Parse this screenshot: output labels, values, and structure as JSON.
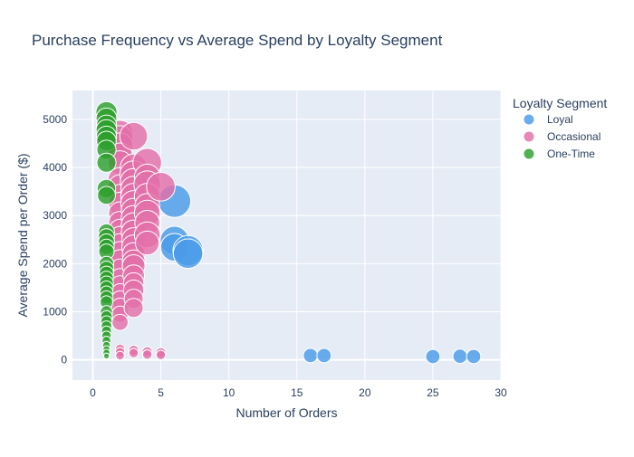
{
  "chart_data": {
    "type": "scatter",
    "title": "Purchase Frequency vs Average Spend by Loyalty Segment",
    "xlabel": "Number of Orders",
    "ylabel": "Average Spend per Order ($)",
    "xlim": [
      -1.5,
      30
    ],
    "ylim": [
      -420,
      5600
    ],
    "x_ticks": [
      0,
      5,
      10,
      15,
      20,
      25,
      30
    ],
    "y_ticks": [
      0,
      1000,
      2000,
      3000,
      4000,
      5000
    ],
    "grid": true,
    "legend": {
      "title": "Loyalty Segment",
      "placement": "top-right"
    },
    "series": [
      {
        "name": "Loyal",
        "color": "#4a9be8",
        "points": [
          {
            "x": 6,
            "y": 3300,
            "s": 1.0
          },
          {
            "x": 6,
            "y": 2480,
            "s": 0.75
          },
          {
            "x": 6,
            "y": 2340,
            "s": 0.7
          },
          {
            "x": 7,
            "y": 2270,
            "s": 0.85
          },
          {
            "x": 7,
            "y": 2210,
            "s": 0.8
          },
          {
            "x": 16,
            "y": 90,
            "s": 0.15
          },
          {
            "x": 17,
            "y": 90,
            "s": 0.15
          },
          {
            "x": 25,
            "y": 70,
            "s": 0.15
          },
          {
            "x": 27,
            "y": 75,
            "s": 0.15
          },
          {
            "x": 28,
            "y": 70,
            "s": 0.15
          }
        ]
      },
      {
        "name": "Occasional",
        "color": "#e36fa8",
        "points": [
          {
            "x": 2,
            "y": 4700,
            "s": 0.65
          },
          {
            "x": 2,
            "y": 4600,
            "s": 0.6
          },
          {
            "x": 2,
            "y": 4450,
            "s": 0.6
          },
          {
            "x": 2,
            "y": 4250,
            "s": 0.55
          },
          {
            "x": 2,
            "y": 4100,
            "s": 0.5
          },
          {
            "x": 2,
            "y": 3750,
            "s": 0.5
          },
          {
            "x": 2,
            "y": 3600,
            "s": 0.5
          },
          {
            "x": 2,
            "y": 3400,
            "s": 0.5
          },
          {
            "x": 2,
            "y": 3250,
            "s": 0.45
          },
          {
            "x": 2,
            "y": 3050,
            "s": 0.45
          },
          {
            "x": 2,
            "y": 2850,
            "s": 0.45
          },
          {
            "x": 2,
            "y": 2700,
            "s": 0.4
          },
          {
            "x": 2,
            "y": 2550,
            "s": 0.4
          },
          {
            "x": 2,
            "y": 2400,
            "s": 0.4
          },
          {
            "x": 2,
            "y": 2250,
            "s": 0.35
          },
          {
            "x": 2,
            "y": 2080,
            "s": 0.35
          },
          {
            "x": 2,
            "y": 1900,
            "s": 0.3
          },
          {
            "x": 2,
            "y": 1700,
            "s": 0.3
          },
          {
            "x": 2,
            "y": 1550,
            "s": 0.3
          },
          {
            "x": 2,
            "y": 1400,
            "s": 0.25
          },
          {
            "x": 2,
            "y": 1250,
            "s": 0.25
          },
          {
            "x": 2,
            "y": 1100,
            "s": 0.25
          },
          {
            "x": 2,
            "y": 950,
            "s": 0.2
          },
          {
            "x": 2,
            "y": 780,
            "s": 0.2
          },
          {
            "x": 2,
            "y": 230,
            "s": 0.05
          },
          {
            "x": 2,
            "y": 160,
            "s": 0.05
          },
          {
            "x": 2,
            "y": 90,
            "s": 0.04
          },
          {
            "x": 3,
            "y": 4650,
            "s": 0.7
          },
          {
            "x": 3,
            "y": 4000,
            "s": 0.65
          },
          {
            "x": 3,
            "y": 3850,
            "s": 0.7
          },
          {
            "x": 3,
            "y": 3700,
            "s": 0.65
          },
          {
            "x": 3,
            "y": 3550,
            "s": 0.6
          },
          {
            "x": 3,
            "y": 3400,
            "s": 0.6
          },
          {
            "x": 3,
            "y": 3250,
            "s": 0.6
          },
          {
            "x": 3,
            "y": 3100,
            "s": 0.55
          },
          {
            "x": 3,
            "y": 2950,
            "s": 0.55
          },
          {
            "x": 3,
            "y": 2800,
            "s": 0.55
          },
          {
            "x": 3,
            "y": 2650,
            "s": 0.55
          },
          {
            "x": 3,
            "y": 2500,
            "s": 0.5
          },
          {
            "x": 3,
            "y": 2350,
            "s": 0.5
          },
          {
            "x": 3,
            "y": 2200,
            "s": 0.45
          },
          {
            "x": 3,
            "y": 2050,
            "s": 0.45
          },
          {
            "x": 3,
            "y": 1950,
            "s": 0.45
          },
          {
            "x": 3,
            "y": 1750,
            "s": 0.4
          },
          {
            "x": 3,
            "y": 1600,
            "s": 0.35
          },
          {
            "x": 3,
            "y": 1450,
            "s": 0.35
          },
          {
            "x": 3,
            "y": 1270,
            "s": 0.3
          },
          {
            "x": 3,
            "y": 1080,
            "s": 0.3
          },
          {
            "x": 3,
            "y": 200,
            "s": 0.06
          },
          {
            "x": 3,
            "y": 140,
            "s": 0.05
          },
          {
            "x": 4,
            "y": 4100,
            "s": 0.75
          },
          {
            "x": 4,
            "y": 3800,
            "s": 0.6
          },
          {
            "x": 4,
            "y": 3650,
            "s": 0.65
          },
          {
            "x": 4,
            "y": 3400,
            "s": 0.6
          },
          {
            "x": 4,
            "y": 3200,
            "s": 0.55
          },
          {
            "x": 4,
            "y": 3050,
            "s": 0.6
          },
          {
            "x": 4,
            "y": 2850,
            "s": 0.55
          },
          {
            "x": 4,
            "y": 2600,
            "s": 0.6
          },
          {
            "x": 4,
            "y": 2430,
            "s": 0.5
          },
          {
            "x": 4,
            "y": 170,
            "s": 0.06
          },
          {
            "x": 4,
            "y": 110,
            "s": 0.05
          },
          {
            "x": 5,
            "y": 3600,
            "s": 0.75
          },
          {
            "x": 5,
            "y": 150,
            "s": 0.06
          },
          {
            "x": 5,
            "y": 100,
            "s": 0.05
          }
        ]
      },
      {
        "name": "One-Time",
        "color": "#2ca02c",
        "points": [
          {
            "x": 1,
            "y": 5150,
            "s": 0.38
          },
          {
            "x": 1,
            "y": 5020,
            "s": 0.36
          },
          {
            "x": 1,
            "y": 4880,
            "s": 0.34
          },
          {
            "x": 1,
            "y": 4780,
            "s": 0.36
          },
          {
            "x": 1,
            "y": 4650,
            "s": 0.34
          },
          {
            "x": 1,
            "y": 4550,
            "s": 0.32
          },
          {
            "x": 1,
            "y": 4370,
            "s": 0.3
          },
          {
            "x": 1,
            "y": 4100,
            "s": 0.3
          },
          {
            "x": 1,
            "y": 3560,
            "s": 0.28
          },
          {
            "x": 1,
            "y": 3420,
            "s": 0.26
          },
          {
            "x": 1,
            "y": 2660,
            "s": 0.2
          },
          {
            "x": 1,
            "y": 2560,
            "s": 0.2
          },
          {
            "x": 1,
            "y": 2450,
            "s": 0.2
          },
          {
            "x": 1,
            "y": 2350,
            "s": 0.18
          },
          {
            "x": 1,
            "y": 2250,
            "s": 0.18
          },
          {
            "x": 1,
            "y": 2000,
            "s": 0.16
          },
          {
            "x": 1,
            "y": 1900,
            "s": 0.16
          },
          {
            "x": 1,
            "y": 1800,
            "s": 0.15
          },
          {
            "x": 1,
            "y": 1700,
            "s": 0.14
          },
          {
            "x": 1,
            "y": 1600,
            "s": 0.14
          },
          {
            "x": 1,
            "y": 1500,
            "s": 0.13
          },
          {
            "x": 1,
            "y": 1400,
            "s": 0.12
          },
          {
            "x": 1,
            "y": 1300,
            "s": 0.12
          },
          {
            "x": 1,
            "y": 1200,
            "s": 0.11
          },
          {
            "x": 1,
            "y": 1000,
            "s": 0.1
          },
          {
            "x": 1,
            "y": 900,
            "s": 0.09
          },
          {
            "x": 1,
            "y": 800,
            "s": 0.08
          },
          {
            "x": 1,
            "y": 700,
            "s": 0.07
          },
          {
            "x": 1,
            "y": 600,
            "s": 0.06
          },
          {
            "x": 1,
            "y": 500,
            "s": 0.05
          },
          {
            "x": 1,
            "y": 400,
            "s": 0.04
          },
          {
            "x": 1,
            "y": 300,
            "s": 0.03
          },
          {
            "x": 1,
            "y": 220,
            "s": 0.02
          },
          {
            "x": 1,
            "y": 150,
            "s": 0.02
          },
          {
            "x": 1,
            "y": 80,
            "s": 0.01
          }
        ]
      }
    ]
  }
}
